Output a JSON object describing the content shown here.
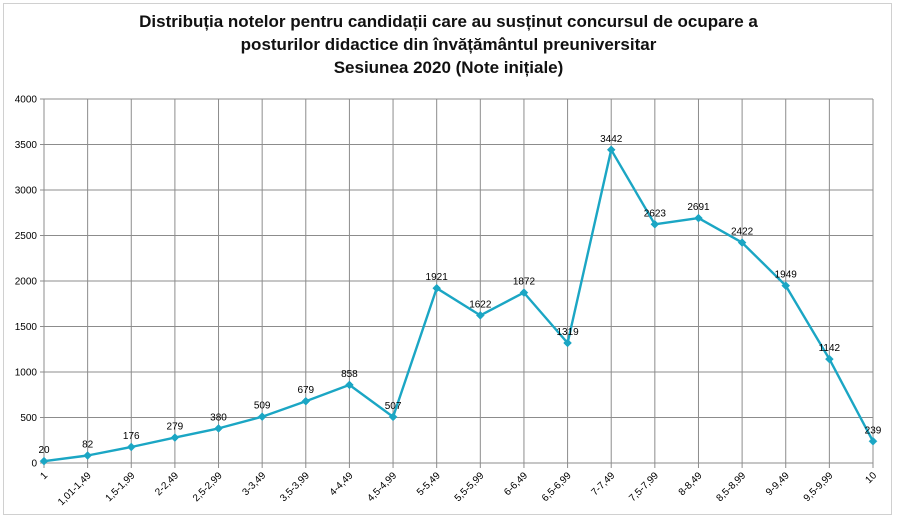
{
  "chart_data": {
    "type": "line",
    "title_lines": [
      "Distribuția notelor pentru candidații care au susținut concursul de ocupare a",
      "posturilor didactice din învățământul preuniversitar",
      "Sesiunea 2020 (Note inițiale)"
    ],
    "categories": [
      "1",
      "1,01-1,49",
      "1,5-1,99",
      "2-2,49",
      "2,5-2,99",
      "3-3,49",
      "3,5-3,99",
      "4-4,49",
      "4,5-4,99",
      "5-5,49",
      "5,5-5,99",
      "6-6,49",
      "6,5-6,99",
      "7-7,49",
      "7,5-7,99",
      "8-8,49",
      "8,5-8,99",
      "9-9,49",
      "9,5-9,99",
      "10"
    ],
    "values": [
      20,
      82,
      176,
      279,
      380,
      509,
      679,
      858,
      507,
      1921,
      1622,
      1872,
      1319,
      3442,
      2623,
      2691,
      2422,
      1949,
      1142,
      239
    ],
    "ylim": [
      0,
      4000
    ],
    "yticks": [
      0,
      500,
      1000,
      1500,
      2000,
      2500,
      3000,
      3500,
      4000
    ],
    "grid": true,
    "legend": "none",
    "colors": {
      "line": "#1BA6C4",
      "marker": "#1BA6C4",
      "grid": "#8c8c8c",
      "axis": "#8c8c8c",
      "text": "#000000"
    }
  }
}
